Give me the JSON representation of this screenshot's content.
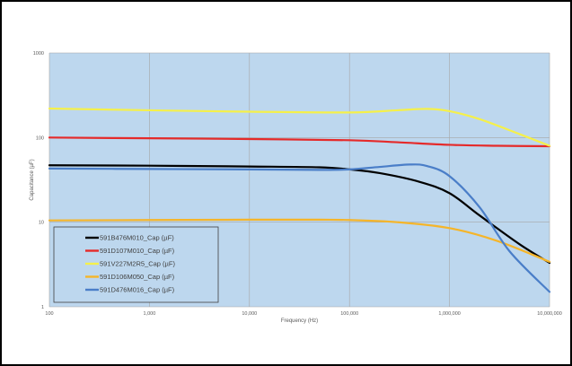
{
  "chart_data": {
    "type": "line",
    "xlabel": "Frequency (Hz)",
    "ylabel": "Capacitance (µF)",
    "x_scale": "log",
    "y_scale": "log",
    "xlim": [
      100,
      10000000
    ],
    "ylim": [
      1,
      1000
    ],
    "x_ticks": [
      "100",
      "1,000",
      "10,000",
      "100,000",
      "1,000,000",
      "10,000,000"
    ],
    "y_ticks": [
      "1",
      "10",
      "100",
      "1000"
    ],
    "grid": true,
    "legend_position": "bottom-left",
    "plot_background": "#bdd7ee",
    "series": [
      {
        "name": "591B476M010_Cap (µF)",
        "color": "#000000",
        "x": [
          100,
          1000,
          10000,
          50000,
          100000,
          200000,
          500000,
          1000000,
          2000000,
          5000000,
          10000000
        ],
        "y": [
          47,
          46.5,
          45.5,
          44.5,
          42,
          38,
          30,
          22,
          12,
          5.5,
          3.3
        ]
      },
      {
        "name": "591D107M010_Cap (µF)",
        "color": "#e52a2a",
        "x": [
          100,
          1000,
          10000,
          100000,
          300000,
          1000000,
          3000000,
          10000000
        ],
        "y": [
          100,
          98,
          96,
          93,
          88,
          82,
          80,
          79
        ]
      },
      {
        "name": "591V227M2R5_Cap (µF)",
        "color": "#f5f04a",
        "x": [
          100,
          1000,
          10000,
          100000,
          300000,
          600000,
          1000000,
          2000000,
          5000000,
          10000000
        ],
        "y": [
          220,
          210,
          202,
          198,
          210,
          218,
          205,
          165,
          110,
          80
        ]
      },
      {
        "name": "591D106M050_Cap (µF)",
        "color": "#f5b52a",
        "x": [
          100,
          1000,
          10000,
          50000,
          100000,
          300000,
          1000000,
          3000000,
          10000000
        ],
        "y": [
          10.5,
          10.6,
          10.7,
          10.7,
          10.6,
          10,
          8.5,
          6,
          3.4
        ]
      },
      {
        "name": "591D476M016_Cap (µF)",
        "color": "#4a7ec8",
        "x": [
          100,
          1000,
          10000,
          50000,
          100000,
          200000,
          400000,
          600000,
          1000000,
          2000000,
          4000000,
          10000000
        ],
        "y": [
          43,
          42.5,
          42,
          41.5,
          42,
          45,
          48,
          46,
          35,
          15,
          4.5,
          1.5
        ]
      }
    ]
  }
}
